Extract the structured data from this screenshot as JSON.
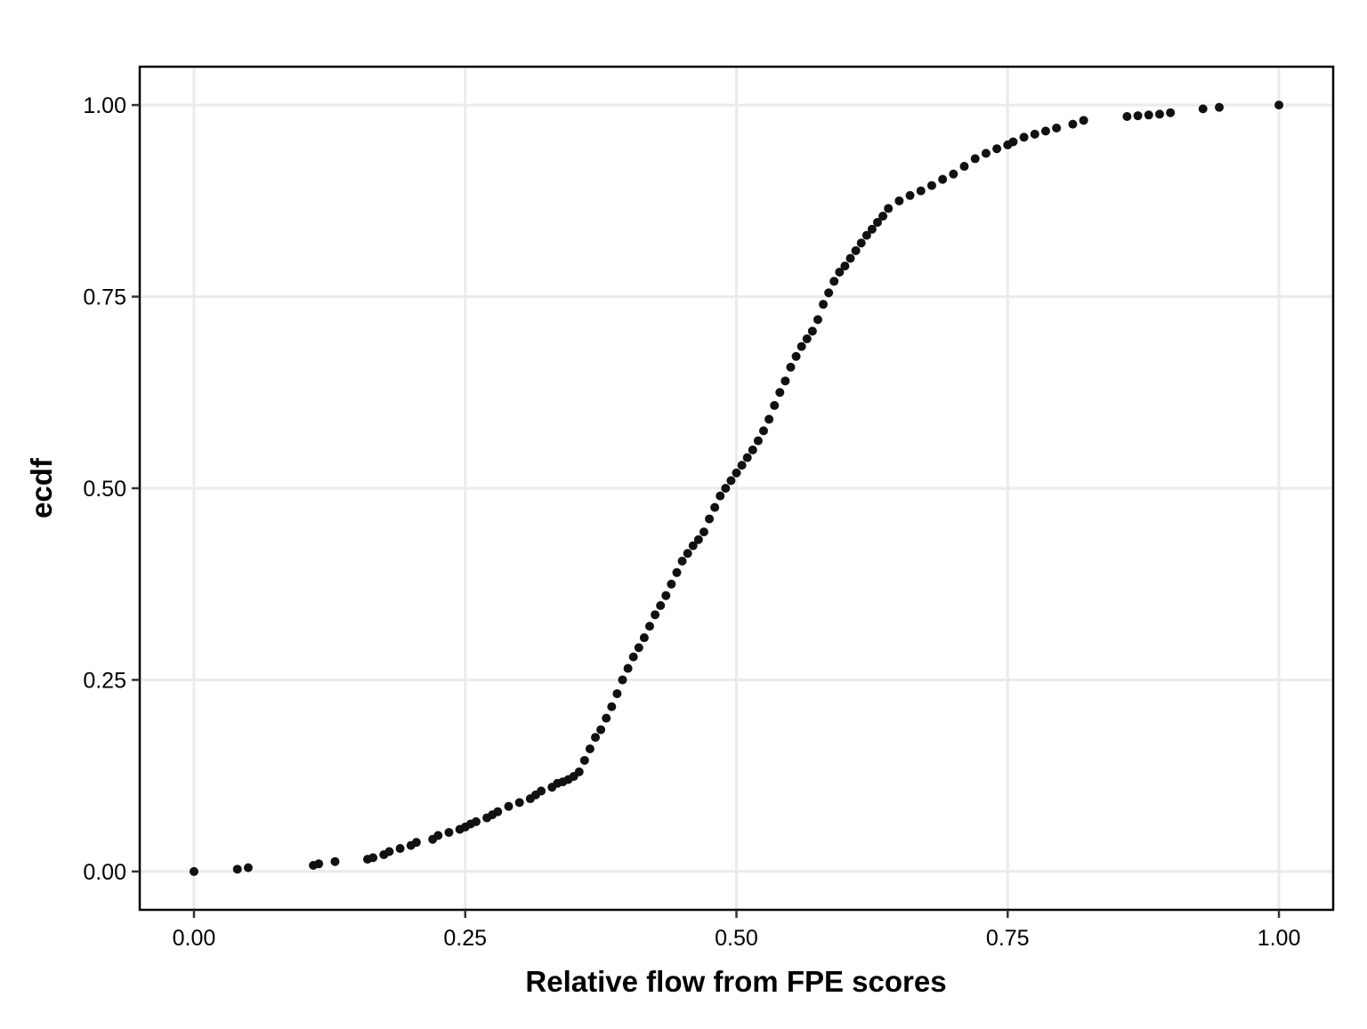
{
  "chart_data": {
    "type": "scatter",
    "title": "",
    "xlabel": "Relative flow from FPE scores",
    "ylabel": "ecdf",
    "xlim": [
      -0.05,
      1.05
    ],
    "ylim": [
      -0.05,
      1.05
    ],
    "x_ticks": [
      "0.00",
      "0.25",
      "0.50",
      "0.75",
      "1.00"
    ],
    "y_ticks": [
      "0.00",
      "0.25",
      "0.50",
      "0.75",
      "1.00"
    ],
    "grid": true,
    "legend": "none",
    "point_color": "#111111",
    "series": [
      {
        "x": [
          0.0,
          0.04,
          0.05,
          0.11,
          0.115,
          0.13,
          0.16,
          0.165,
          0.175,
          0.18,
          0.19,
          0.2,
          0.205,
          0.22,
          0.225,
          0.235,
          0.245,
          0.25,
          0.255,
          0.26,
          0.27,
          0.275,
          0.28,
          0.29,
          0.3,
          0.31,
          0.315,
          0.32,
          0.33,
          0.335,
          0.34,
          0.345,
          0.35,
          0.355,
          0.36,
          0.365,
          0.37,
          0.375,
          0.38,
          0.385,
          0.39,
          0.395,
          0.4,
          0.405,
          0.41,
          0.415,
          0.42,
          0.425,
          0.43,
          0.435,
          0.44,
          0.445,
          0.45,
          0.455,
          0.46,
          0.465,
          0.47,
          0.475,
          0.48,
          0.485,
          0.49,
          0.495,
          0.5,
          0.505,
          0.51,
          0.515,
          0.52,
          0.525,
          0.53,
          0.535,
          0.54,
          0.545,
          0.55,
          0.555,
          0.56,
          0.565,
          0.57,
          0.575,
          0.58,
          0.585,
          0.59,
          0.595,
          0.6,
          0.605,
          0.61,
          0.615,
          0.62,
          0.625,
          0.63,
          0.635,
          0.64,
          0.65,
          0.66,
          0.67,
          0.68,
          0.69,
          0.7,
          0.71,
          0.72,
          0.73,
          0.74,
          0.75,
          0.755,
          0.765,
          0.775,
          0.785,
          0.795,
          0.81,
          0.82,
          0.86,
          0.87,
          0.88,
          0.89,
          0.9,
          0.93,
          0.945,
          1.0
        ],
        "y": [
          0.0,
          0.003,
          0.005,
          0.008,
          0.01,
          0.013,
          0.016,
          0.018,
          0.022,
          0.026,
          0.03,
          0.034,
          0.038,
          0.042,
          0.047,
          0.051,
          0.055,
          0.058,
          0.062,
          0.065,
          0.07,
          0.074,
          0.078,
          0.085,
          0.09,
          0.095,
          0.1,
          0.105,
          0.11,
          0.115,
          0.117,
          0.12,
          0.124,
          0.13,
          0.145,
          0.16,
          0.175,
          0.185,
          0.2,
          0.215,
          0.232,
          0.25,
          0.265,
          0.28,
          0.292,
          0.305,
          0.32,
          0.335,
          0.347,
          0.36,
          0.375,
          0.39,
          0.405,
          0.415,
          0.425,
          0.433,
          0.443,
          0.46,
          0.475,
          0.49,
          0.5,
          0.51,
          0.52,
          0.53,
          0.54,
          0.55,
          0.562,
          0.575,
          0.59,
          0.608,
          0.625,
          0.64,
          0.658,
          0.672,
          0.685,
          0.695,
          0.705,
          0.72,
          0.74,
          0.755,
          0.77,
          0.782,
          0.79,
          0.8,
          0.81,
          0.82,
          0.83,
          0.838,
          0.847,
          0.855,
          0.865,
          0.875,
          0.882,
          0.888,
          0.895,
          0.903,
          0.91,
          0.92,
          0.93,
          0.937,
          0.943,
          0.948,
          0.952,
          0.958,
          0.962,
          0.966,
          0.97,
          0.975,
          0.98,
          0.985,
          0.986,
          0.987,
          0.988,
          0.99,
          0.995,
          0.997,
          1.0
        ]
      }
    ]
  }
}
